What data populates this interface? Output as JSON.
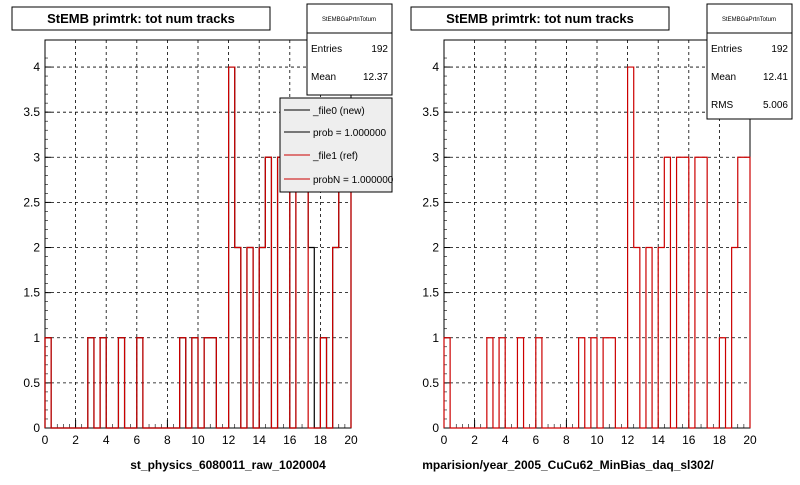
{
  "colors": {
    "background": "#ffffff",
    "frame": "#000000",
    "grid": "#000000",
    "hist_new": "#000000",
    "hist_ref": "#cc0000"
  },
  "chart_data": [
    {
      "type": "histogram",
      "title": "StEMB primtrk: tot num tracks",
      "xlabel": "st_physics_6080011_raw_1020004",
      "ylabel": "",
      "xlim": [
        0,
        20
      ],
      "ylim": [
        0,
        4.2
      ],
      "grid": true,
      "x_ticks": [
        "0",
        "2",
        "4",
        "6",
        "8",
        "10",
        "12",
        "14",
        "16",
        "18",
        "20"
      ],
      "y_ticks": [
        "0",
        "0.5",
        "1",
        "1.5",
        "2",
        "2.5",
        "3",
        "3.5",
        "4"
      ],
      "bin_width": 0.4,
      "x_start": 0,
      "series": [
        {
          "name": "_file0 (new)",
          "color": "#000000",
          "values": [
            1,
            0,
            0,
            0,
            0,
            0,
            0,
            1,
            0,
            1,
            0,
            0,
            1,
            0,
            0,
            1,
            0,
            0,
            0,
            0,
            0,
            0,
            1,
            0,
            1,
            0,
            1,
            1,
            0,
            0,
            4,
            2,
            0,
            2,
            0,
            2,
            3,
            0,
            3,
            3,
            0,
            3,
            3,
            2,
            0,
            1,
            0,
            2,
            3,
            3
          ]
        },
        {
          "name": "_file1 (ref)",
          "color": "#cc0000",
          "values": [
            1,
            0,
            0,
            0,
            0,
            0,
            0,
            1,
            0,
            1,
            0,
            0,
            1,
            0,
            0,
            1,
            0,
            0,
            0,
            0,
            0,
            0,
            1,
            0,
            1,
            0,
            1,
            1,
            0,
            0,
            4,
            2,
            0,
            2,
            0,
            2,
            3,
            0,
            3,
            3,
            0,
            3,
            3,
            0,
            0,
            1,
            0,
            2,
            3,
            3
          ]
        }
      ],
      "stats": {
        "title": "StEMBGaPrtnTotum",
        "entries_label": "Entries",
        "entries": "192",
        "mean_label": "Mean",
        "mean": "12.37"
      },
      "legend": {
        "position": "top-right",
        "entries": [
          {
            "label": "_file0 (new)",
            "color": "#000000"
          },
          {
            "label": "prob = 1.000000",
            "color": "#000000"
          },
          {
            "label": "_file1 (ref)",
            "color": "#cc0000"
          },
          {
            "label": "probN = 1.000000",
            "color": "#cc0000"
          }
        ]
      }
    },
    {
      "type": "histogram",
      "title": "StEMB primtrk: tot num tracks",
      "xlabel": "mparision/year_2005_CuCu62_MinBias_daq_sl302/",
      "ylabel": "",
      "xlim": [
        0,
        20
      ],
      "ylim": [
        0,
        4.2
      ],
      "grid": true,
      "x_ticks": [
        "0",
        "2",
        "4",
        "6",
        "8",
        "10",
        "12",
        "14",
        "16",
        "18",
        "20"
      ],
      "y_ticks": [
        "0",
        "0.5",
        "1",
        "1.5",
        "2",
        "2.5",
        "3",
        "3.5",
        "4"
      ],
      "bin_width": 0.4,
      "x_start": 0,
      "series": [
        {
          "name": "_file1 (ref)",
          "color": "#cc0000",
          "values": [
            1,
            0,
            0,
            0,
            0,
            0,
            0,
            1,
            0,
            1,
            0,
            0,
            1,
            0,
            0,
            1,
            0,
            0,
            0,
            0,
            0,
            0,
            1,
            0,
            1,
            0,
            1,
            1,
            0,
            0,
            4,
            2,
            0,
            2,
            0,
            2,
            3,
            0,
            3,
            3,
            0,
            3,
            3,
            0,
            0,
            1,
            0,
            2,
            3,
            3
          ]
        }
      ],
      "stats": {
        "title": "StEMBGaPrtnTotum",
        "entries_label": "Entries",
        "entries": "192",
        "mean_label": "Mean",
        "mean": "12.41",
        "rms_label": "RMS",
        "rms": "5.006"
      }
    }
  ]
}
